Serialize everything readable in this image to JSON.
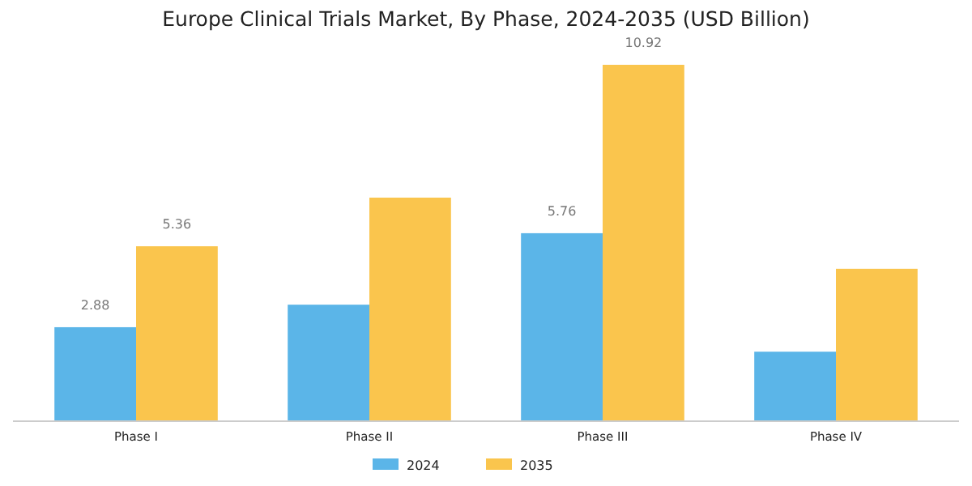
{
  "chart_data": {
    "type": "bar",
    "title": "Europe Clinical Trials Market, By Phase, 2024-2035 (USD Billion)",
    "categories": [
      "Phase I",
      "Phase II",
      "Phase III",
      "Phase IV"
    ],
    "series": [
      {
        "name": "2024",
        "color": "#5bb5e8",
        "values": [
          2.88,
          3.57,
          5.76,
          2.13
        ],
        "value_labels": [
          "2.88",
          null,
          "5.76",
          null
        ]
      },
      {
        "name": "2035",
        "color": "#fac54d",
        "values": [
          5.36,
          6.85,
          10.92,
          4.67
        ],
        "value_labels": [
          "5.36",
          null,
          "10.92",
          null
        ]
      }
    ],
    "legend": "bottom"
  }
}
